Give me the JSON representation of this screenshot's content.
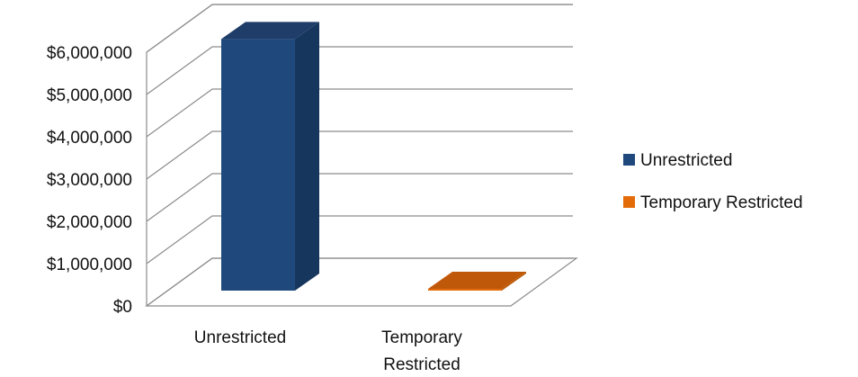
{
  "chart_data": {
    "type": "bar",
    "style": "3d-column",
    "categories": [
      "Unrestricted",
      "Temporary Restricted"
    ],
    "category_label_lines": [
      [
        "Unrestricted"
      ],
      [
        "Temporary",
        "Restricted"
      ]
    ],
    "series": [
      {
        "name": "Unrestricted",
        "category": "Unrestricted",
        "value": 5950000,
        "color": "#1F497D",
        "side_color": "#17365D",
        "top_color": "#1F3D68"
      },
      {
        "name": "Temporary Restricted",
        "category": "Temporary Restricted",
        "value": 25000,
        "color": "#E36C09",
        "side_color": "#B85A06",
        "top_color": "#C0580A"
      }
    ],
    "y_ticks": [
      "$0",
      "$1,000,000",
      "$2,000,000",
      "$3,000,000",
      "$4,000,000",
      "$5,000,000",
      "$6,000,000"
    ],
    "ylim": [
      0,
      6000000
    ],
    "grid": true,
    "legend_position": "right",
    "title": "",
    "xlabel": "",
    "ylabel": ""
  }
}
